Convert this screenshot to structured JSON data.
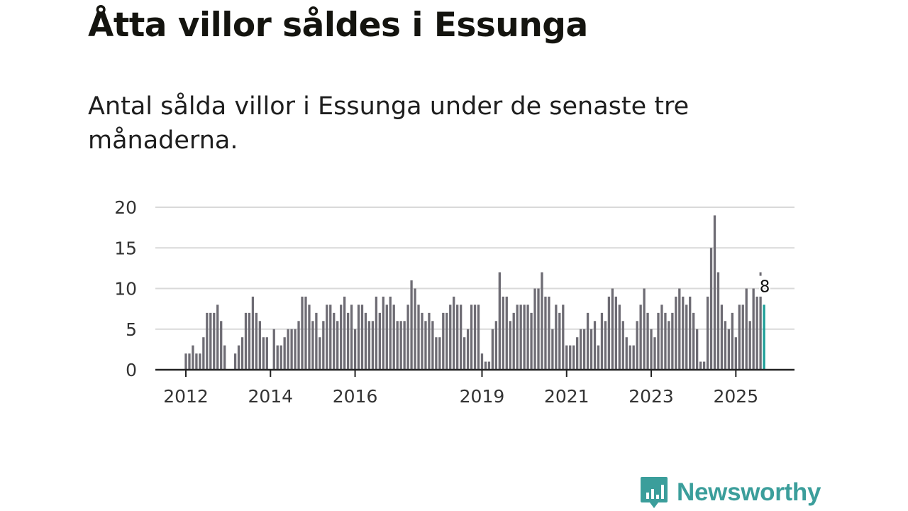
{
  "title": "Åtta villor såldes i Essunga",
  "subtitle": "Antal sålda villor i Essunga under de senaste tre månaderna.",
  "brand": {
    "name": "Newsworthy",
    "color": "#3b9e9b"
  },
  "colors": {
    "bar": "#6e6c74",
    "highlight": "#1b9e97",
    "grid": "#d9d9d9",
    "axis": "#222222"
  },
  "chart_data": {
    "type": "bar",
    "title": "",
    "xlabel": "",
    "ylabel": "",
    "ylim": [
      0,
      20
    ],
    "yticks": [
      0,
      5,
      10,
      15,
      20
    ],
    "x_start": "2012-01",
    "x_tick_labels": [
      {
        "label": "2012",
        "index": 0
      },
      {
        "label": "2014",
        "index": 24
      },
      {
        "label": "2016",
        "index": 48
      },
      {
        "label": "2019",
        "index": 84
      },
      {
        "label": "2021",
        "index": 108
      },
      {
        "label": "2023",
        "index": 132
      },
      {
        "label": "2025",
        "index": 156
      }
    ],
    "values": [
      2,
      2,
      3,
      2,
      2,
      4,
      7,
      7,
      7,
      8,
      6,
      3,
      0,
      0,
      2,
      3,
      4,
      7,
      7,
      9,
      7,
      6,
      4,
      4,
      0,
      5,
      3,
      3,
      4,
      5,
      5,
      5,
      6,
      9,
      9,
      8,
      6,
      7,
      4,
      6,
      8,
      8,
      7,
      6,
      8,
      9,
      7,
      8,
      5,
      8,
      8,
      7,
      6,
      6,
      9,
      7,
      9,
      8,
      9,
      8,
      6,
      6,
      6,
      8,
      11,
      10,
      8,
      7,
      6,
      7,
      6,
      4,
      4,
      7,
      7,
      8,
      9,
      8,
      8,
      4,
      5,
      8,
      8,
      8,
      2,
      1,
      1,
      5,
      6,
      12,
      9,
      9,
      6,
      7,
      8,
      8,
      8,
      8,
      7,
      10,
      10,
      12,
      9,
      9,
      5,
      8,
      7,
      8,
      3,
      3,
      3,
      4,
      5,
      5,
      7,
      5,
      6,
      3,
      7,
      6,
      9,
      10,
      9,
      8,
      6,
      4,
      3,
      3,
      6,
      8,
      10,
      7,
      5,
      4,
      7,
      8,
      7,
      6,
      7,
      9,
      10,
      9,
      8,
      9,
      7,
      5,
      1,
      1,
      9,
      15,
      19,
      12,
      8,
      6,
      5,
      7,
      4,
      8,
      8,
      10,
      6,
      10,
      9,
      9,
      8
    ],
    "highlight_index": 164,
    "highlight_label": "8",
    "prev_marker_value": 12
  }
}
